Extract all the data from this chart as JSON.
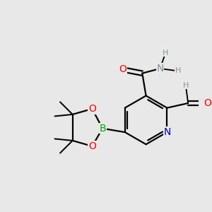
{
  "bg_color": "#e8e8e8",
  "atom_colors": {
    "C": "#000000",
    "H": "#7a9a9a",
    "N": "#0000cd",
    "O": "#ff0000",
    "B": "#00aa00"
  },
  "bond_color": "#000000",
  "bond_lw": 1.6,
  "figsize": [
    3.0,
    3.0
  ],
  "dpi": 100,
  "font_size_atom": 10,
  "font_size_small": 8,
  "xlim": [
    -2.8,
    1.4
  ],
  "ylim": [
    -1.4,
    1.8
  ]
}
